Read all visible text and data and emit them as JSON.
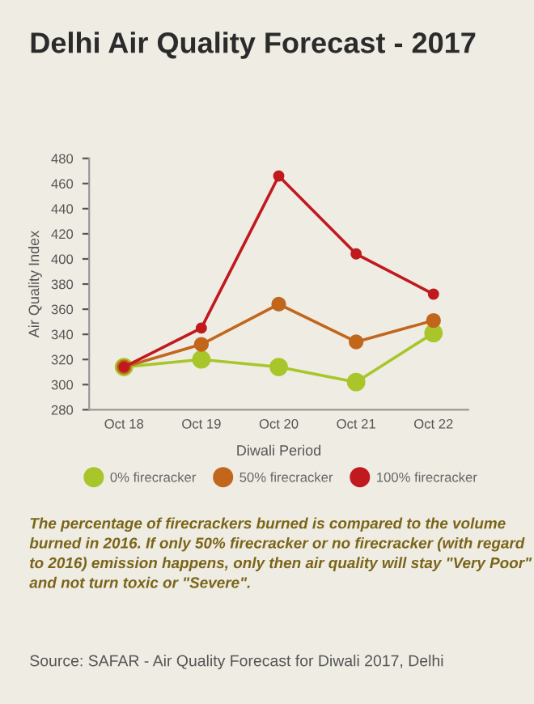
{
  "chart_data": {
    "type": "line",
    "title": "Delhi Air Quality Forecast - 2017",
    "xlabel": "Diwali Period",
    "ylabel": "Air Quality Index",
    "categories": [
      "Oct 18",
      "Oct 19",
      "Oct 20",
      "Oct 21",
      "Oct 22"
    ],
    "series": [
      {
        "name": "0% firecracker",
        "color": "#a8c62a",
        "values": [
          314,
          320,
          314,
          302,
          341
        ]
      },
      {
        "name": "50% firecracker",
        "color": "#c2661c",
        "values": [
          314,
          332,
          364,
          334,
          351
        ]
      },
      {
        "name": "100% firecracker",
        "color": "#c01a1e",
        "values": [
          314,
          345,
          466,
          404,
          372
        ]
      }
    ],
    "ylim": [
      280,
      480
    ],
    "yticks": [
      280,
      300,
      320,
      340,
      360,
      380,
      400,
      420,
      440,
      460,
      480
    ],
    "grid": false,
    "legend": "bottom",
    "marker": "circle",
    "line_style": "solid",
    "annotations": [
      "The percentage of firecrackers burned is compared to the volume burned in 2016. If only 50% firecracker or no firecracker (with regard to 2016) emission happens, only then air quality will stay \"Very Poor\" and not turn toxic or \"Severe\".",
      "Source: SAFAR - Air Quality Forecast for Diwali 2017, Delhi"
    ]
  }
}
